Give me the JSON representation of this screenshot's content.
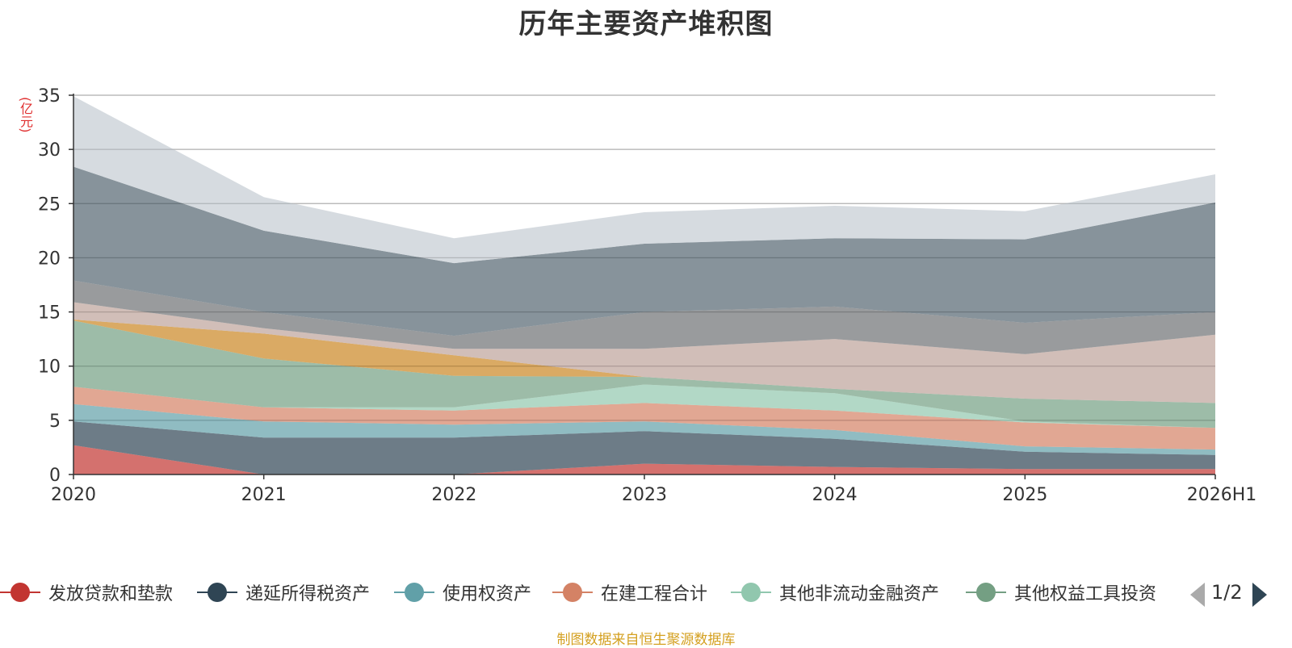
{
  "chart_data": {
    "type": "area",
    "stacked": true,
    "title": "历年主要资产堆积图",
    "ylabel": "(亿元)",
    "categories": [
      "2020",
      "2021",
      "2022",
      "2023",
      "2024",
      "2025",
      "2026H1"
    ],
    "ylim": [
      0,
      35
    ],
    "yticks": [
      0,
      5,
      10,
      15,
      20,
      25,
      30,
      35
    ],
    "grid": true,
    "series": [
      {
        "name": "发放贷款和垫款",
        "color": "#c23531",
        "values": [
          2.7,
          0.0,
          0.0,
          1.0,
          0.7,
          0.5,
          0.5
        ]
      },
      {
        "name": "递延所得税资产",
        "color": "#2f4554",
        "values": [
          2.2,
          3.4,
          3.4,
          3.0,
          2.6,
          1.6,
          1.3
        ]
      },
      {
        "name": "使用权资产",
        "color": "#61a0a8",
        "values": [
          1.6,
          1.5,
          1.2,
          0.9,
          0.8,
          0.5,
          0.5
        ]
      },
      {
        "name": "在建工程合计",
        "color": "#d48265",
        "values": [
          1.6,
          1.3,
          1.3,
          1.7,
          1.8,
          2.2,
          2.0
        ]
      },
      {
        "name": "其他非流动金融资产",
        "color": "#91c7ae",
        "values": [
          0.0,
          0.0,
          0.3,
          1.7,
          1.6,
          0.1,
          0.0
        ]
      },
      {
        "name": "其他权益工具投资",
        "color": "#749f83",
        "values": [
          6.1,
          4.5,
          2.9,
          0.7,
          0.4,
          2.1,
          2.3
        ]
      },
      {
        "name": "",
        "color": "#ca8622",
        "values": [
          0.1,
          2.3,
          1.9,
          0.0,
          0.0,
          0.0,
          0.0
        ]
      },
      {
        "name": "",
        "color": "#bda29a",
        "values": [
          1.6,
          0.5,
          0.6,
          2.6,
          4.6,
          4.1,
          6.3
        ]
      },
      {
        "name": "",
        "color": "#6e7074",
        "values": [
          2.0,
          1.5,
          1.2,
          3.4,
          3.0,
          2.9,
          2.1
        ]
      },
      {
        "name": "",
        "color": "#546570",
        "values": [
          10.5,
          7.5,
          6.7,
          6.3,
          6.3,
          7.7,
          10.1
        ]
      },
      {
        "name": "",
        "color": "#c4ccd3",
        "values": [
          6.5,
          3.1,
          2.3,
          2.9,
          3.0,
          2.6,
          2.6
        ]
      }
    ]
  },
  "legend": {
    "items": [
      "发放贷款和垫款",
      "递延所得税资产",
      "使用权资产",
      "在建工程合计",
      "其他非流动金融资产",
      "其他权益工具投资"
    ],
    "page": "1/2"
  },
  "source_note": "制图数据来自恒生聚源数据库"
}
